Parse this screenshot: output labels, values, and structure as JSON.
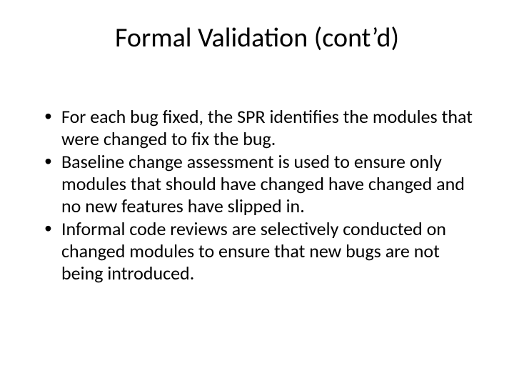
{
  "slide": {
    "title": "Formal Validation (cont’d)",
    "title_fontsize": 38,
    "title_color": "#000000",
    "body_fontsize": 26,
    "body_color": "#000000",
    "background_color": "#ffffff",
    "bullets": [
      "For each bug fixed, the SPR identifies the modules that were changed to fix the bug.",
      "Baseline change assessment is used to ensure only modules that should have changed have changed and no new features have slipped in.",
      "Informal code reviews are selectively conducted on changed modules to ensure that new bugs are not being introduced."
    ]
  }
}
